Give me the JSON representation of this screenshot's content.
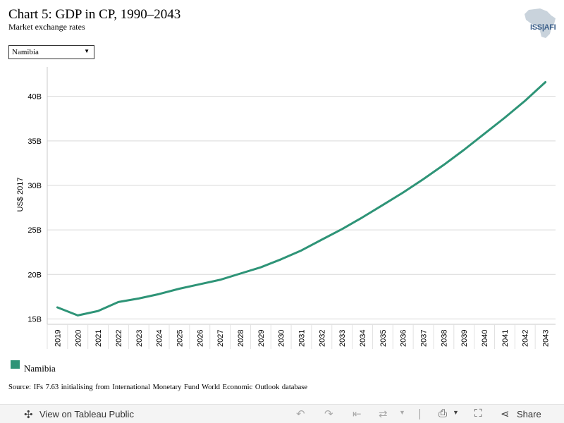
{
  "header": {
    "title": "Chart 5: GDP in CP, 1990–2043",
    "subtitle": "Market exchange rates",
    "logo_text": "ISS|AFI"
  },
  "filter": {
    "selected": "Namibia"
  },
  "chart_data": {
    "type": "line",
    "title": "Chart 5: GDP in CP, 1990–2043",
    "subtitle": "Market exchange rates",
    "ylabel": "US$ 2017",
    "xlabel": "",
    "x": [
      "2019",
      "2020",
      "2021",
      "2022",
      "2023",
      "2024",
      "2025",
      "2026",
      "2027",
      "2028",
      "2029",
      "2030",
      "2031",
      "2032",
      "2033",
      "2034",
      "2035",
      "2036",
      "2037",
      "2038",
      "2039",
      "2040",
      "2041",
      "2042",
      "2043"
    ],
    "ylim": [
      14.4,
      43.3
    ],
    "yticks": [
      15,
      20,
      25,
      30,
      35,
      40
    ],
    "ytick_labels": [
      "15B",
      "20B",
      "25B",
      "30B",
      "35B",
      "40B"
    ],
    "grid": true,
    "legend_position": "bottom-left",
    "series": [
      {
        "name": "Namibia",
        "color": "#2e9477",
        "values": [
          16.3,
          15.4,
          15.9,
          16.9,
          17.3,
          17.8,
          18.4,
          18.9,
          19.4,
          20.1,
          20.8,
          21.7,
          22.7,
          23.9,
          25.1,
          26.4,
          27.8,
          29.2,
          30.7,
          32.3,
          34.0,
          35.8,
          37.6,
          39.5,
          41.6
        ]
      }
    ]
  },
  "legend": {
    "items": [
      {
        "label": "Namibia",
        "color": "#2e9477"
      }
    ]
  },
  "source": "Source: IFs 7.63 initialising from International Monetary Fund World Economic Outlook database",
  "toolbar": {
    "view_label": "View on Tableau Public",
    "share_label": "Share"
  }
}
